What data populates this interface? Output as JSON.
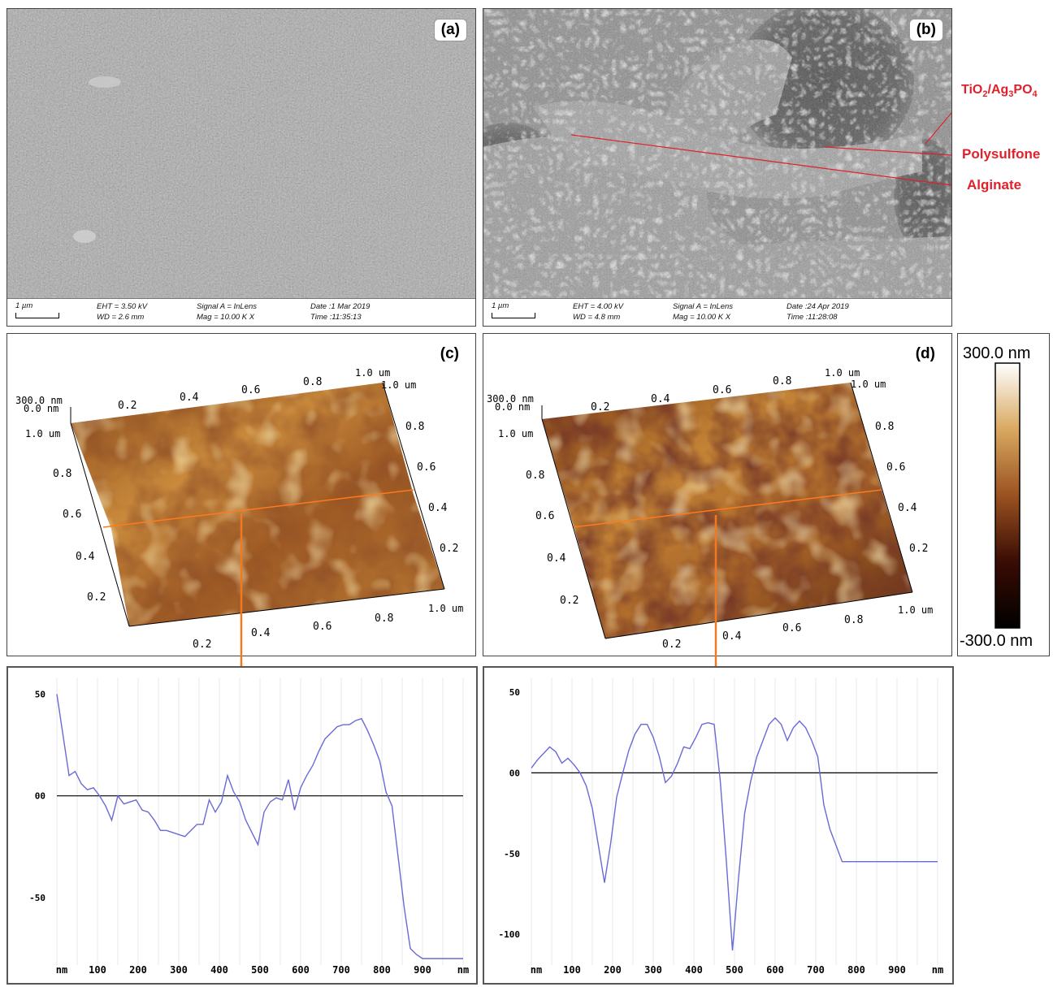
{
  "panels": {
    "a": {
      "label": "(a)",
      "info": {
        "scale": "1 µm",
        "eht": "EHT = 3.50 kV",
        "wd": "WD = 2.6 mm",
        "signal": "Signal A = InLens",
        "mag": "Mag = 10.00 K X",
        "date": "Date :1 Mar 2019",
        "time": "Time :11:35:13"
      }
    },
    "b": {
      "label": "(b)",
      "info": {
        "scale": "1 µm",
        "eht": "EHT = 4.00 kV",
        "wd": "WD = 4.8 mm",
        "signal": "Signal A = InLens",
        "mag": "Mag = 10.00 K X",
        "date": "Date :24 Apr 2019",
        "time": "Time :11:28:08"
      },
      "annotations": {
        "tio2_prefix": "TiO",
        "tio2_sub1": "2",
        "tio2_mid": "/Ag",
        "tio2_sub2": "3",
        "tio2_suffix": "PO",
        "tio2_sub3": "4",
        "polysulfone": "Polysulfone",
        "alginate": "Alginate"
      }
    },
    "c": {
      "label": "(c)"
    },
    "d": {
      "label": "(d)"
    }
  },
  "afm_axes": {
    "z_top": "300.0 nm",
    "z_zero": "0.0 nm",
    "y_top": "1.0 um",
    "ticks": [
      "0.2",
      "0.4",
      "0.6",
      "0.8"
    ],
    "end": "1.0 um"
  },
  "colorbar": {
    "top": "300.0 nm",
    "bottom": "-300.0 nm"
  },
  "profiles": {
    "left": {
      "y_ticks": [
        "50",
        "00",
        "-50"
      ],
      "x_ticks": [
        "nm",
        "100",
        "200",
        "300",
        "400",
        "500",
        "600",
        "700",
        "800",
        "900",
        "nm"
      ]
    },
    "right": {
      "y_ticks": [
        "50",
        "00",
        "-50",
        "-100"
      ],
      "x_ticks": [
        "nm",
        "100",
        "200",
        "300",
        "400",
        "500",
        "600",
        "700",
        "800",
        "900",
        "nm"
      ]
    }
  },
  "chart_data": [
    {
      "type": "line",
      "xlabel": "nm",
      "x": [
        0,
        15,
        30,
        45,
        60,
        75,
        90,
        105,
        120,
        135,
        150,
        165,
        180,
        195,
        210,
        225,
        240,
        255,
        270,
        285,
        300,
        315,
        330,
        345,
        360,
        375,
        390,
        405,
        420,
        435,
        450,
        465,
        480,
        495,
        510,
        525,
        540,
        555,
        570,
        585,
        600,
        615,
        630,
        645,
        660,
        675,
        690,
        705,
        720,
        735,
        750,
        765,
        780,
        795,
        810,
        825,
        840,
        855,
        870,
        885,
        900,
        915,
        930,
        945,
        960,
        975,
        990,
        1000
      ],
      "series": [
        {
          "values": [
            50,
            30,
            10,
            12,
            6,
            3,
            4,
            0,
            -5,
            -12,
            0,
            -4,
            -3,
            -2,
            -7,
            -8,
            -12,
            -17,
            -17,
            -18,
            -19,
            -20,
            -17,
            -14,
            -14,
            -2,
            -8,
            -3,
            10,
            2,
            -3,
            -12,
            -18,
            -24,
            -8,
            -3,
            -1,
            -2,
            8,
            -7,
            4,
            10,
            15,
            22,
            28,
            31,
            34,
            35,
            35,
            37,
            38,
            32,
            25,
            17,
            2,
            -5,
            -30,
            -55,
            -75,
            -78,
            -80,
            -80,
            -80,
            -80,
            -80,
            -80,
            -80,
            -80
          ]
        }
      ],
      "ylim": [
        -80,
        55
      ],
      "xlim": [
        0,
        1000
      ]
    },
    {
      "type": "line",
      "xlabel": "nm",
      "x": [
        0,
        15,
        30,
        45,
        60,
        75,
        90,
        105,
        120,
        135,
        150,
        165,
        180,
        195,
        210,
        225,
        240,
        255,
        270,
        285,
        300,
        315,
        330,
        345,
        360,
        375,
        390,
        405,
        420,
        435,
        450,
        465,
        480,
        495,
        510,
        525,
        540,
        555,
        570,
        585,
        600,
        615,
        630,
        645,
        660,
        675,
        690,
        705,
        720,
        735,
        750,
        765,
        780,
        795,
        810,
        825,
        840,
        855,
        870,
        885,
        900,
        915,
        930,
        945,
        960,
        975,
        990,
        1000
      ],
      "series": [
        {
          "values": [
            3,
            8,
            12,
            16,
            13,
            6,
            9,
            5,
            0,
            -8,
            -22,
            -45,
            -68,
            -44,
            -15,
            0,
            14,
            24,
            30,
            30,
            22,
            10,
            -6,
            -2,
            6,
            16,
            15,
            22,
            30,
            31,
            30,
            -5,
            -55,
            -110,
            -65,
            -25,
            -5,
            10,
            20,
            30,
            34,
            30,
            20,
            28,
            32,
            28,
            20,
            10,
            -20,
            -35,
            -45,
            -55,
            -55,
            -55,
            -55,
            -55,
            -55,
            -55,
            -55,
            -55,
            -55,
            -55,
            -55,
            -55,
            -55,
            -55,
            -55,
            -55
          ]
        }
      ],
      "ylim": [
        -115,
        55
      ],
      "xlim": [
        0,
        1000
      ]
    }
  ]
}
